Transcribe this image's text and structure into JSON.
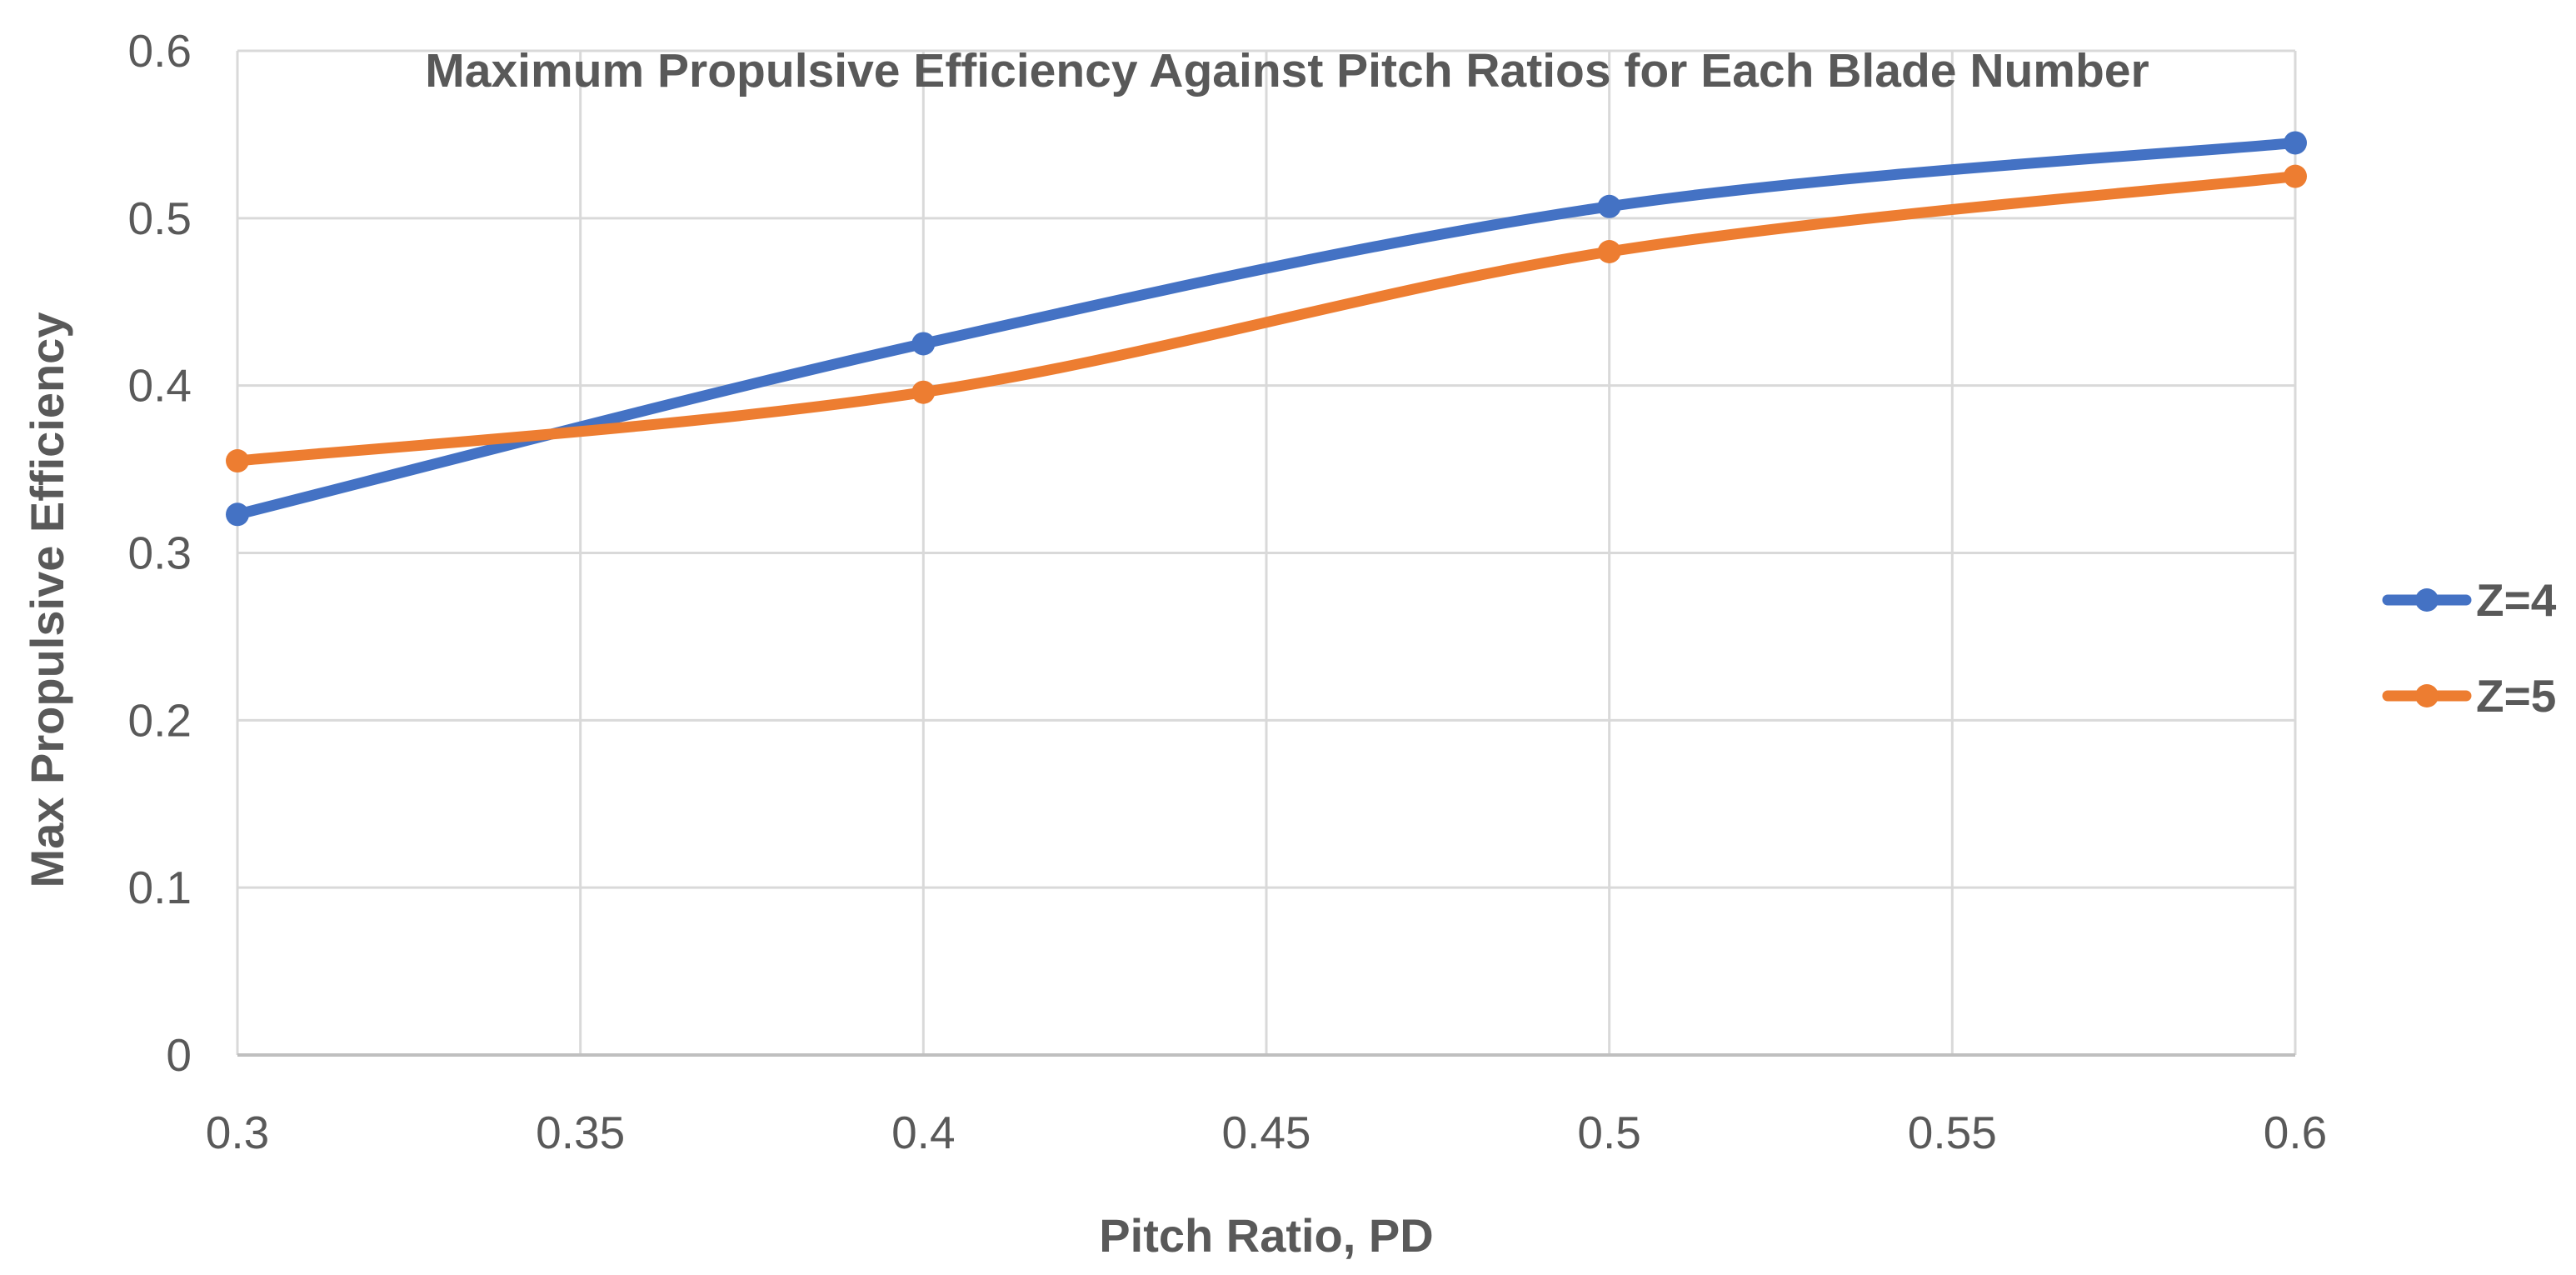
{
  "chart_data": {
    "type": "line",
    "title": "Maximum Propulsive Efficiency Against Pitch Ratios for Each Blade Number",
    "xlabel": "Pitch Ratio, PD",
    "ylabel": "Max Propulsive Efficiency",
    "x": [
      0.3,
      0.4,
      0.5,
      0.6
    ],
    "series": [
      {
        "name": "Z=4",
        "color": "#4472C4",
        "values": [
          0.323,
          0.425,
          0.507,
          0.545
        ]
      },
      {
        "name": "Z=5",
        "color": "#ED7D31",
        "values": [
          0.355,
          0.396,
          0.48,
          0.525
        ]
      }
    ],
    "xlim": [
      0.3,
      0.6
    ],
    "ylim": [
      0,
      0.6
    ],
    "x_tick_labels": [
      "0.3",
      "0.35",
      "0.4",
      "0.45",
      "0.5",
      "0.55",
      "0.6"
    ],
    "y_tick_labels": [
      "0",
      "0.1",
      "0.2",
      "0.3",
      "0.4",
      "0.5",
      "0.6"
    ],
    "grid": true,
    "smooth_lines": true,
    "legend": {
      "position": "right",
      "entries": [
        "Z=4",
        "Z=5"
      ]
    },
    "styles": {
      "text_color": "#595959",
      "gridline_color": "#D9D9D9",
      "axis_line_color": "#BFBFBF",
      "background": "#FFFFFF"
    }
  }
}
